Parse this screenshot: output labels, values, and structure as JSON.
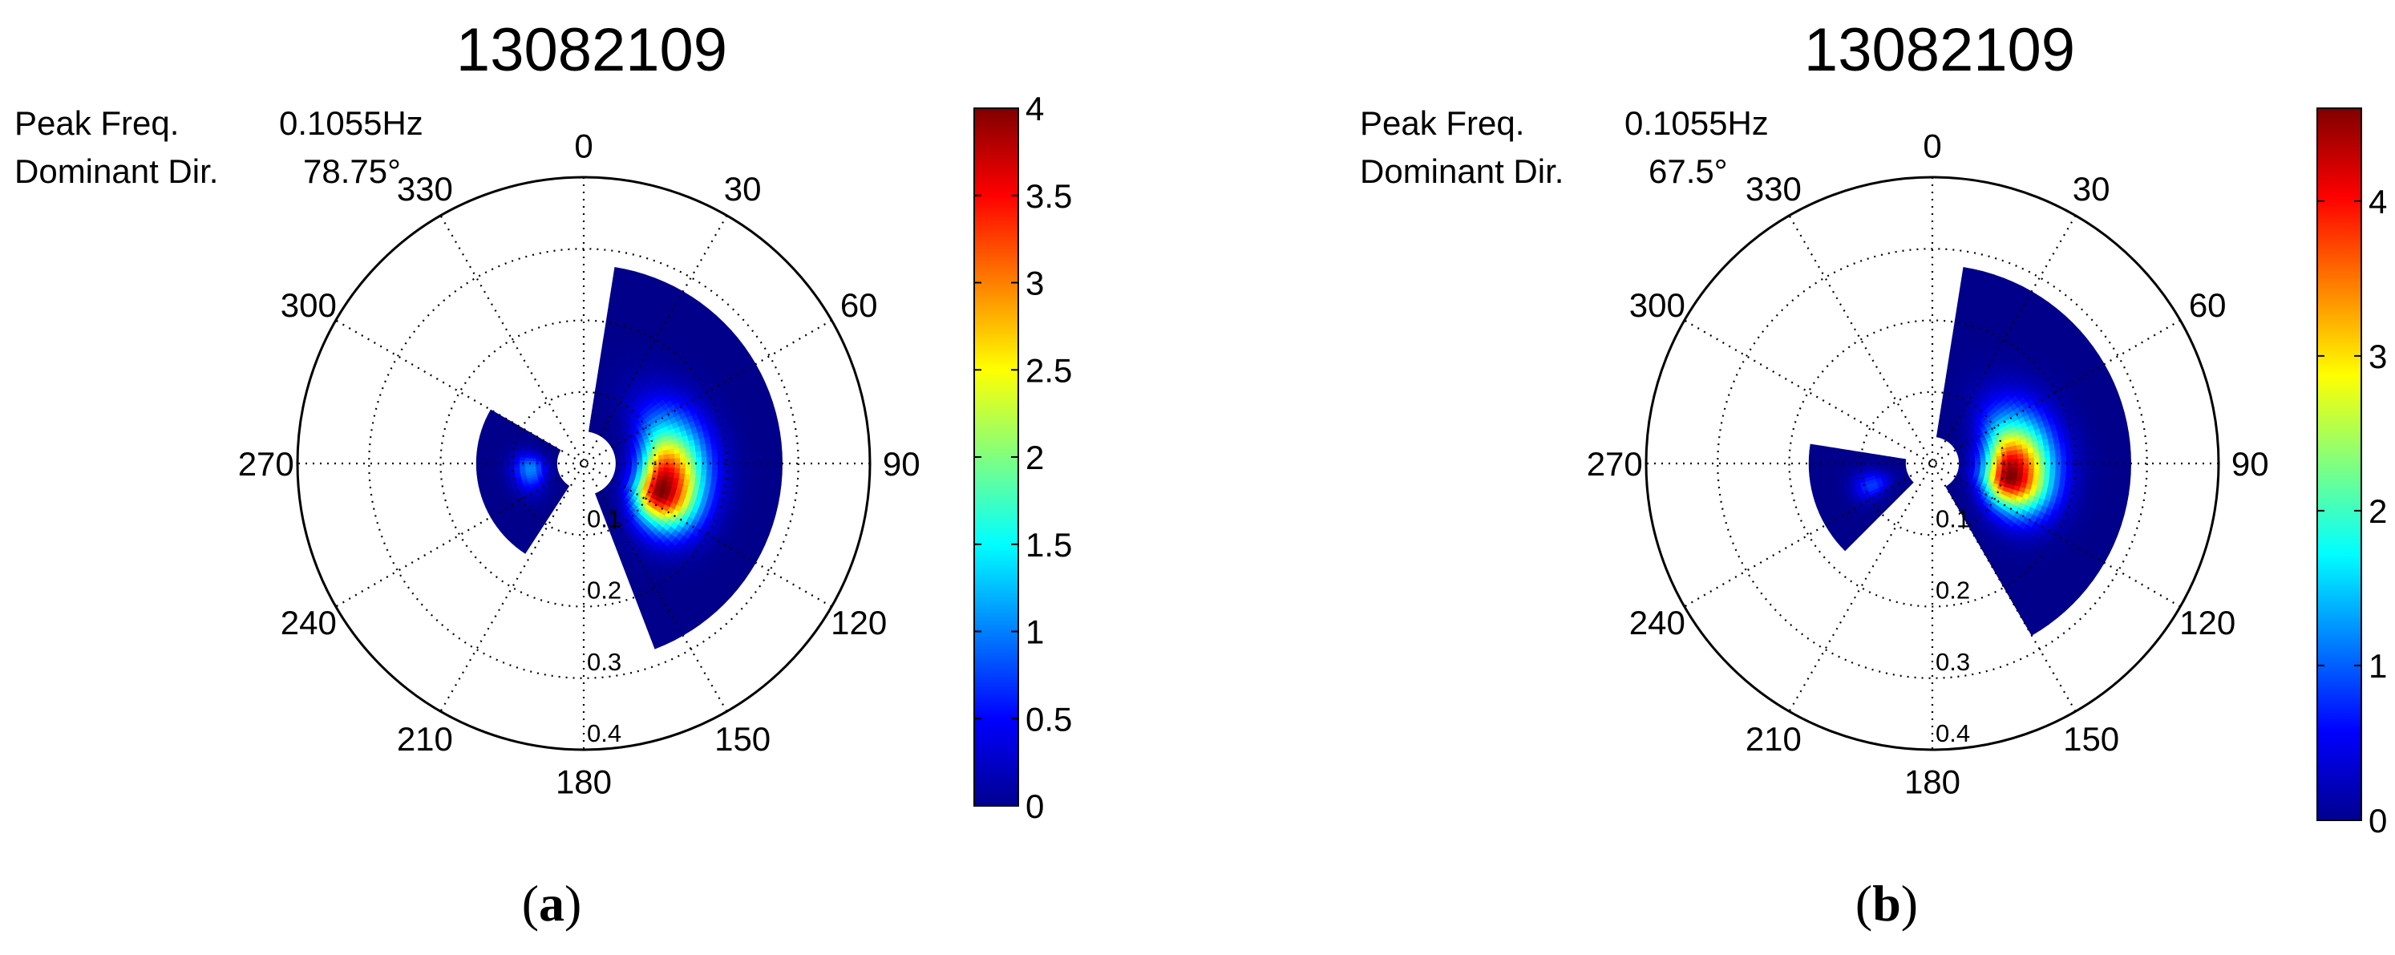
{
  "chart_data": [
    {
      "type": "polar-heatmap",
      "panel_label": "a",
      "title": "13082109",
      "peak_freq_label": "Peak Freq.",
      "peak_freq_value": "0.1055Hz",
      "dominant_dir_label": "Dominant Dir.",
      "dominant_dir_value": "78.75°",
      "angle_ticks": [
        "0",
        "30",
        "60",
        "90",
        "120",
        "150",
        "180",
        "210",
        "240",
        "270",
        "300",
        "330"
      ],
      "radial_ticks": [
        "0.1",
        "0.2",
        "0.3",
        "0.4"
      ],
      "rlim": [
        0,
        0.4
      ],
      "colorbar": {
        "min": 0,
        "max": 4,
        "ticks": [
          "0",
          "0.5",
          "1",
          "1.5",
          "2",
          "2.5",
          "3",
          "3.5",
          "4"
        ]
      },
      "lobes": [
        {
          "theta_start": 8,
          "theta_end": 160,
          "r_inner": 0.045,
          "r_outer": 0.28,
          "theta_peak": 110,
          "r_peak": 0.115,
          "peak_value": 4.0
        },
        {
          "theta_start": 212,
          "theta_end": 300,
          "r_inner": 0.035,
          "r_outer": 0.15,
          "theta_peak": 265,
          "r_peak": 0.075,
          "peak_value": 1.0
        }
      ],
      "colors": {
        "low": "#00008f",
        "mid_low": "#0070ff",
        "mid": "#40ffbf",
        "mid_high": "#ffd000",
        "high": "#ff1000",
        "max": "#800000"
      }
    },
    {
      "type": "polar-heatmap",
      "panel_label": "b",
      "title": "13082109",
      "peak_freq_label": "Peak Freq.",
      "peak_freq_value": "0.1055Hz",
      "dominant_dir_label": "Dominant Dir.",
      "dominant_dir_value": "67.5°",
      "angle_ticks": [
        "0",
        "30",
        "60",
        "90",
        "120",
        "150",
        "180",
        "210",
        "240",
        "270",
        "300",
        "330"
      ],
      "radial_ticks": [
        "0.1",
        "0.2",
        "0.3",
        "0.4"
      ],
      "rlim": [
        0,
        0.4
      ],
      "colorbar": {
        "min": 0,
        "max": 4.6,
        "ticks": [
          "0",
          "1",
          "2",
          "3",
          "4"
        ]
      },
      "lobes": [
        {
          "theta_start": 10,
          "theta_end": 150,
          "r_inner": 0.04,
          "r_outer": 0.28,
          "theta_peak": 100,
          "r_peak": 0.11,
          "peak_value": 4.6
        },
        {
          "theta_start": 225,
          "theta_end": 280,
          "r_inner": 0.04,
          "r_outer": 0.17,
          "theta_peak": 250,
          "r_peak": 0.09,
          "peak_value": 0.8
        }
      ],
      "colors": {
        "low": "#00008f",
        "mid_low": "#0070ff",
        "mid": "#40ffbf",
        "mid_high": "#ffd000",
        "high": "#ff1000",
        "max": "#800000"
      }
    }
  ]
}
